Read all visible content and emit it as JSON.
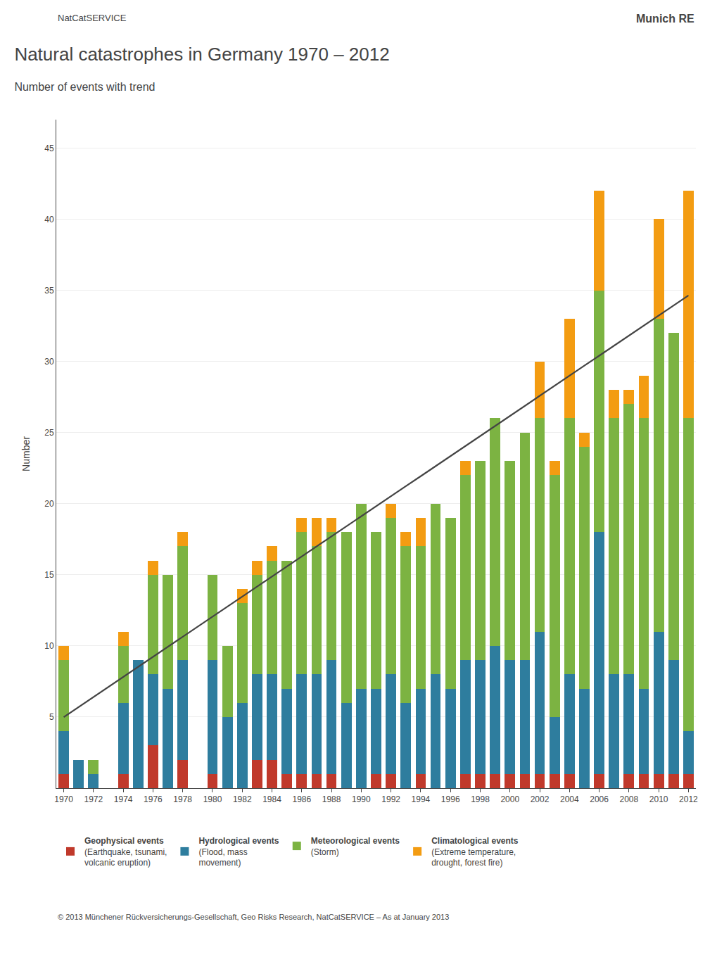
{
  "chart_data": {
    "type": "bar",
    "title": "Natural catastrophes in Germany 1970 – 2012",
    "subtitle": "Number of events with trend",
    "ylabel": "Number",
    "annotations": [
      "NatCatSERVICE",
      "Munich RE",
      "© 2013 Münchener Rückversicherungs-Gesellschaft, Geo Risks Research, NatCatSERVICE – As at January 2013"
    ],
    "stacked": true,
    "grid": true,
    "legend": "bottom",
    "x": [
      1970,
      1971,
      1972,
      1973,
      1974,
      1975,
      1976,
      1977,
      1978,
      1979,
      1980,
      1981,
      1982,
      1983,
      1984,
      1985,
      1986,
      1987,
      1988,
      1989,
      1990,
      1991,
      1992,
      1993,
      1994,
      1995,
      1996,
      1997,
      1998,
      1999,
      2000,
      2001,
      2002,
      2003,
      2004,
      2005,
      2006,
      2007,
      2008,
      2009,
      2010,
      2011,
      2012
    ],
    "xlim": [
      1969.5,
      2012.5
    ],
    "xticks": [
      1970,
      1972,
      1974,
      1976,
      1978,
      1980,
      1982,
      1984,
      1986,
      1988,
      1990,
      1992,
      1994,
      1996,
      1998,
      2000,
      2002,
      2004,
      2006,
      2008,
      2010,
      2012
    ],
    "ylim": [
      0,
      47
    ],
    "yticks": [
      5,
      10,
      15,
      20,
      25,
      30,
      35,
      40,
      45
    ],
    "series": [
      {
        "name": "Geophysical events\n(Earthquake, tsunami,\nvolcanic eruption)",
        "color": "#c0392b",
        "values": [
          1,
          0,
          0,
          0,
          1,
          0,
          3,
          0,
          2,
          0,
          1,
          0,
          0,
          2,
          2,
          1,
          1,
          1,
          1,
          0,
          0,
          1,
          1,
          0,
          1,
          0,
          0,
          1,
          1,
          1,
          1,
          1,
          1,
          1,
          1,
          0,
          1,
          0,
          1,
          1,
          1,
          1,
          1
        ]
      },
      {
        "name": "Hydrological events\n(Flood, mass\nmovement)",
        "color": "#2e7d9e",
        "values": [
          3,
          2,
          1,
          0,
          5,
          9,
          5,
          7,
          7,
          0,
          8,
          5,
          6,
          6,
          6,
          6,
          7,
          7,
          8,
          6,
          7,
          6,
          7,
          6,
          6,
          8,
          7,
          8,
          8,
          9,
          8,
          8,
          10,
          4,
          7,
          7,
          17,
          8,
          7,
          6,
          10,
          8,
          3
        ]
      },
      {
        "name": "Meteorological events\n(Storm)",
        "color": "#7cb342",
        "values": [
          5,
          0,
          1,
          0,
          4,
          0,
          7,
          8,
          8,
          0,
          6,
          5,
          7,
          7,
          8,
          9,
          10,
          9,
          9,
          12,
          13,
          11,
          11,
          11,
          10,
          12,
          12,
          13,
          14,
          16,
          14,
          16,
          15,
          17,
          18,
          17,
          17,
          18,
          19,
          19,
          22,
          23,
          22
        ]
      },
      {
        "name": "Climatological events\n(Extreme temperature,\ndrought, forest fire)",
        "color": "#f39c12",
        "values": [
          1,
          0,
          0,
          0,
          1,
          0,
          1,
          0,
          1,
          0,
          0,
          0,
          1,
          1,
          1,
          0,
          1,
          2,
          1,
          0,
          0,
          0,
          1,
          1,
          2,
          0,
          0,
          1,
          0,
          0,
          0,
          0,
          4,
          1,
          7,
          1,
          7,
          2,
          1,
          3,
          7,
          0,
          16
        ]
      },
      {
        "type": "line",
        "color": "#444444",
        "values": [
          4.99,
          5.7,
          6.4,
          7.11,
          7.81,
          8.52,
          9.23,
          9.93,
          10.64,
          11.34,
          12.05,
          12.76,
          13.46,
          14.17,
          14.87,
          15.58,
          16.28,
          16.99,
          17.7,
          18.4,
          19.11,
          19.81,
          20.52,
          21.23,
          21.93,
          22.64,
          23.34,
          24.05,
          24.75,
          25.46,
          26.17,
          26.87,
          27.58,
          28.28,
          28.99,
          29.7,
          30.4,
          31.11,
          31.81,
          32.52,
          33.22,
          33.93,
          34.64
        ]
      }
    ]
  }
}
